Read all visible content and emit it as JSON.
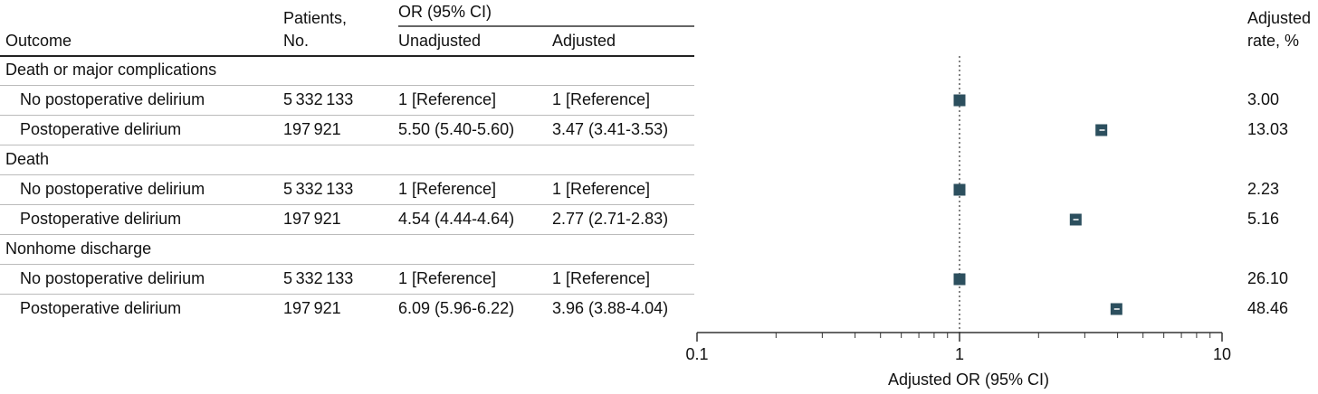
{
  "chart_data": {
    "type": "forest",
    "headers": {
      "outcome": "Outcome",
      "patients": [
        "Patients,",
        "No."
      ],
      "or_group": "OR (95% CI)",
      "unadjusted": "Unadjusted",
      "adjusted": "Adjusted",
      "rate": [
        "Adjusted",
        "rate, %"
      ]
    },
    "groups": [
      {
        "name": "Death or major complications",
        "rows": [
          {
            "label": "No postoperative delirium",
            "patients": "5 332 133",
            "unadjusted": "1 [Reference]",
            "adjusted": "1 [Reference]",
            "estimate": 1,
            "rate": "3.00"
          },
          {
            "label": "Postoperative delirium",
            "patients": "197 921",
            "unadjusted": "5.50 (5.40-5.60)",
            "adjusted": "3.47 (3.41-3.53)",
            "estimate": 3.47,
            "lower": 3.41,
            "upper": 3.53,
            "rate": "13.03"
          }
        ]
      },
      {
        "name": "Death",
        "rows": [
          {
            "label": "No postoperative delirium",
            "patients": "5 332 133",
            "unadjusted": "1 [Reference]",
            "adjusted": "1 [Reference]",
            "estimate": 1,
            "rate": "2.23"
          },
          {
            "label": "Postoperative delirium",
            "patients": "197 921",
            "unadjusted": "4.54 (4.44-4.64)",
            "adjusted": "2.77 (2.71-2.83)",
            "estimate": 2.77,
            "lower": 2.71,
            "upper": 2.83,
            "rate": "5.16"
          }
        ]
      },
      {
        "name": "Nonhome discharge",
        "rows": [
          {
            "label": "No postoperative delirium",
            "patients": "5 332 133",
            "unadjusted": "1 [Reference]",
            "adjusted": "1 [Reference]",
            "estimate": 1,
            "rate": "26.10"
          },
          {
            "label": "Postoperative delirium",
            "patients": "197 921",
            "unadjusted": "6.09 (5.96-6.22)",
            "adjusted": "3.96 (3.88-4.04)",
            "estimate": 3.96,
            "lower": 3.88,
            "upper": 4.04,
            "rate": "48.46"
          }
        ]
      }
    ],
    "xlabel": "Adjusted OR (95% CI)",
    "xscale": "log",
    "xlim": [
      0.1,
      10
    ],
    "xticks": [
      0.1,
      1,
      10
    ],
    "minor_xticks": [
      0.2,
      0.3,
      0.4,
      0.5,
      0.6,
      0.7,
      0.8,
      0.9,
      2,
      3,
      4,
      5,
      6,
      7,
      8,
      9
    ],
    "reference_line": 1,
    "color": "#2c4f5e"
  }
}
